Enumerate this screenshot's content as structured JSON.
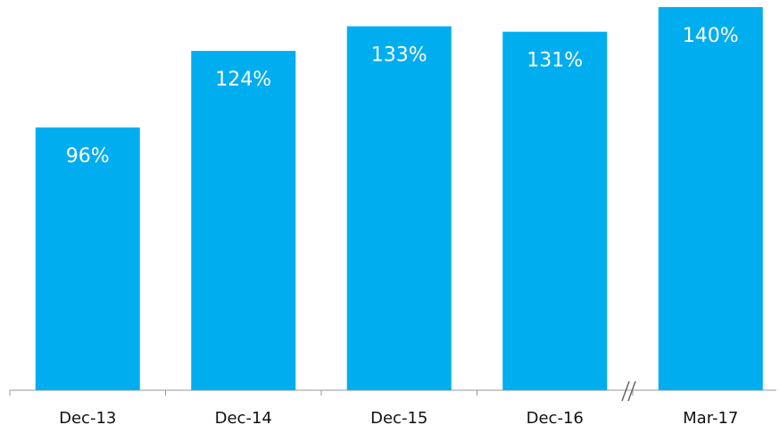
{
  "chart_data": {
    "type": "bar",
    "categories": [
      "Dec-13",
      "Dec-14",
      "Dec-15",
      "Dec-16",
      "Mar-17"
    ],
    "values": [
      96,
      124,
      133,
      131,
      140
    ],
    "value_labels": [
      "96%",
      "124%",
      "133%",
      "131%",
      "140%"
    ],
    "color": "#00adef"
  }
}
